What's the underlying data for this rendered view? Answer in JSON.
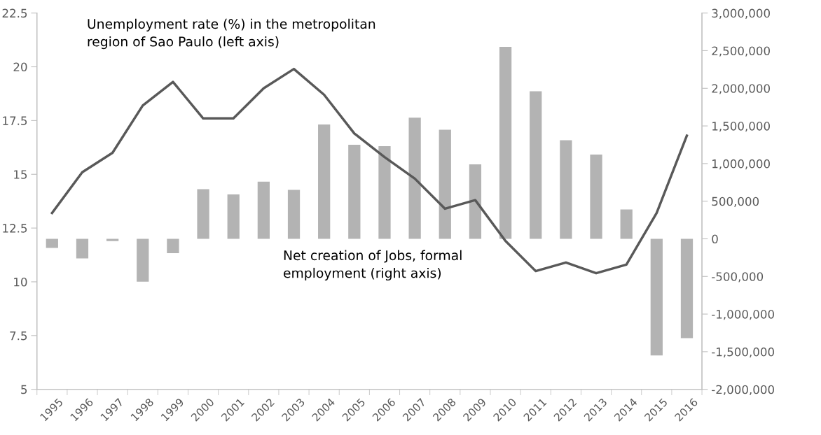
{
  "chart_data": {
    "type": "line",
    "categories": [
      "1995",
      "1996",
      "1997",
      "1998",
      "1999",
      "2000",
      "2001",
      "2002",
      "2003",
      "2004",
      "2005",
      "2006",
      "2007",
      "2008",
      "2009",
      "2010",
      "2011",
      "2012",
      "2013",
      "2014",
      "2015",
      "2016"
    ],
    "series": [
      {
        "type": "bar",
        "axis": "y2",
        "color": "#b3b3b3",
        "values": [
          -120000,
          -260000,
          -30000,
          -570000,
          -190000,
          660000,
          590000,
          760000,
          650000,
          1520000,
          1250000,
          1230000,
          1610000,
          1450000,
          990000,
          2550000,
          1960000,
          1310000,
          1120000,
          390000,
          -1550000,
          -1320000
        ]
      },
      {
        "color": "#595959",
        "values": [
          13.2,
          15.1,
          16.0,
          18.2,
          19.3,
          17.6,
          17.6,
          19.0,
          19.9,
          18.7,
          16.9,
          15.8,
          14.8,
          13.4,
          13.8,
          11.9,
          10.5,
          10.9,
          10.4,
          10.8,
          13.2,
          16.8
        ]
      }
    ],
    "ylim": [
      5,
      22.5
    ],
    "yticks": [
      5,
      7.5,
      10,
      12.5,
      15,
      17.5,
      20,
      22.5
    ],
    "y2lim": [
      -2000000,
      3000000
    ],
    "y2ticks": [
      {
        "value": -2000000,
        "label": "-2,000,000"
      },
      {
        "value": -1500000,
        "label": "-1,500,000"
      },
      {
        "value": -1000000,
        "label": "-1,000,000"
      },
      {
        "value": -500000,
        "label": "-500,000"
      },
      {
        "value": 0,
        "label": "0"
      },
      {
        "value": 500000,
        "label": "500,000"
      },
      {
        "value": 1000000,
        "label": "1,000,000"
      },
      {
        "value": 1500000,
        "label": "1,500,000"
      },
      {
        "value": 2000000,
        "label": "2,000,000"
      },
      {
        "value": 2500000,
        "label": "2,500,000"
      },
      {
        "value": 3000000,
        "label": "3,000,000"
      }
    ],
    "annotations": [
      "Unemployment rate (%) in the metropolitan\nregion of Sao Paulo (left axis)",
      "Net creation of Jobs, formal\nemployment (right axis)"
    ],
    "grid": false,
    "marker": "none",
    "line_style": "solid"
  }
}
